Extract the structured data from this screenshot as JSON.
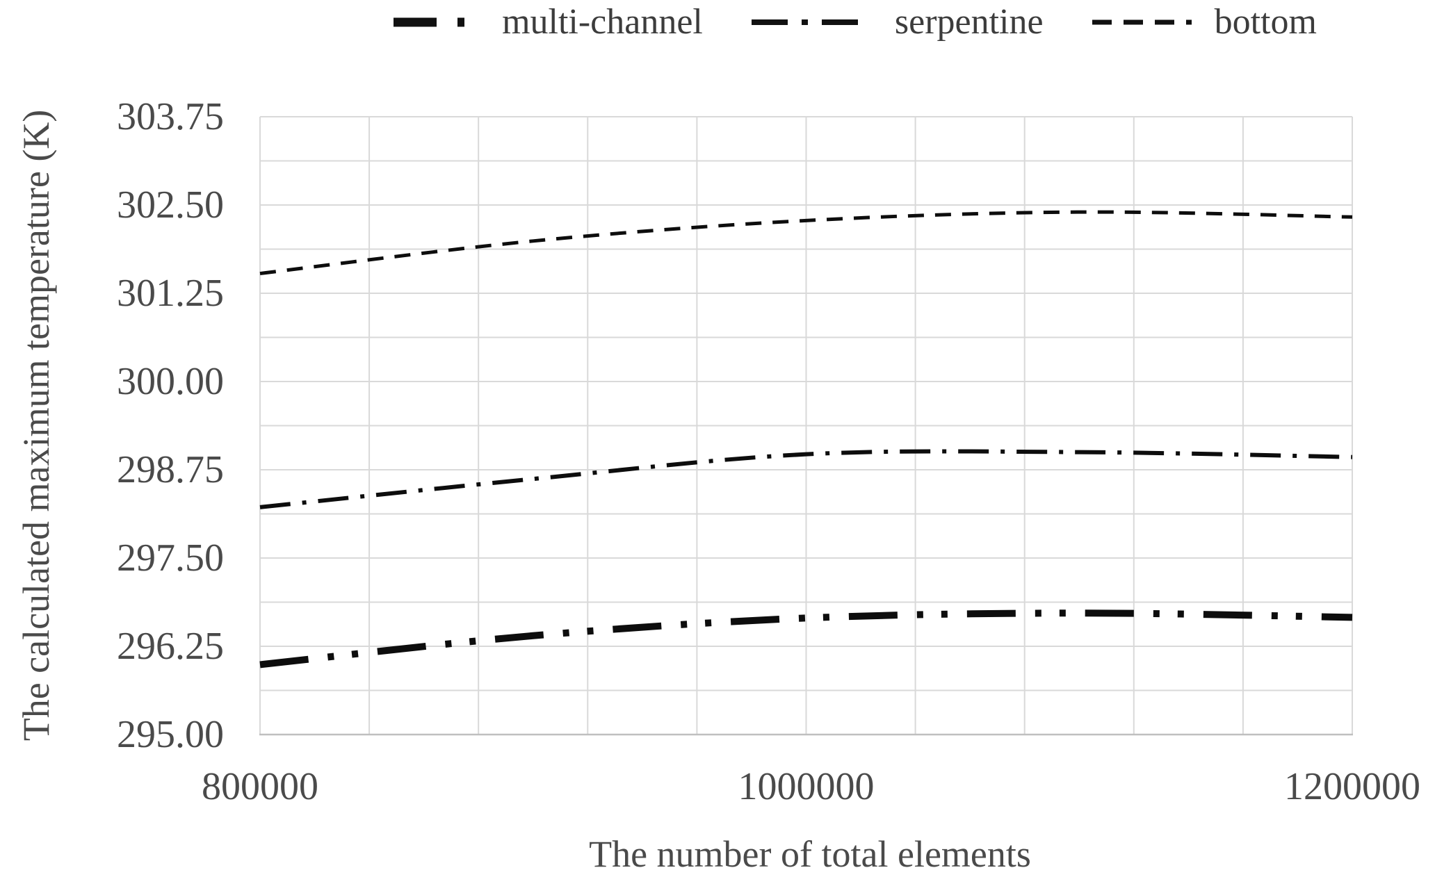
{
  "legend": {
    "items": [
      {
        "label": "multi-channel",
        "line_style": "long-dash-dot-dot-heavy"
      },
      {
        "label": "serpentine",
        "line_style": "long-dash-dot"
      },
      {
        "label": "bottom",
        "line_style": "dash"
      }
    ]
  },
  "chart_data": {
    "type": "line",
    "title": "",
    "xlabel": "The number of total elements",
    "ylabel": "The calculated maximum temperature (K)",
    "x": [
      800000,
      900000,
      1000000,
      1100000,
      1200000
    ],
    "series": [
      {
        "name": "multi-channel",
        "line_style": "long-dash-dot-dot-heavy",
        "values": [
          295.99,
          296.4,
          296.65,
          296.72,
          296.66
        ]
      },
      {
        "name": "serpentine",
        "line_style": "long-dash-dot",
        "values": [
          298.22,
          298.62,
          298.97,
          299.0,
          298.93
        ]
      },
      {
        "name": "bottom",
        "line_style": "dash",
        "values": [
          301.53,
          301.99,
          302.28,
          302.4,
          302.33
        ]
      }
    ],
    "xlim": [
      800000,
      1200000
    ],
    "ylim": [
      295.0,
      303.75
    ],
    "xticks": {
      "values": [
        800000,
        1000000,
        1200000
      ],
      "labels": [
        "800000",
        "1000000",
        "1200000"
      ]
    },
    "yticks": [
      "303.75",
      "302.50",
      "301.25",
      "300.00",
      "298.75",
      "297.50",
      "296.25",
      "295.00"
    ],
    "y_major_unit": 1.25,
    "y_minor_unit": 0.625,
    "x_gridline_unit": 40000,
    "grid": true,
    "legend_position": "top",
    "colors": {
      "series": "#0d0d0d",
      "gridline": "#d9d9d9",
      "axis_line": "#bfbfbf",
      "text": "#4a4a4a"
    }
  }
}
